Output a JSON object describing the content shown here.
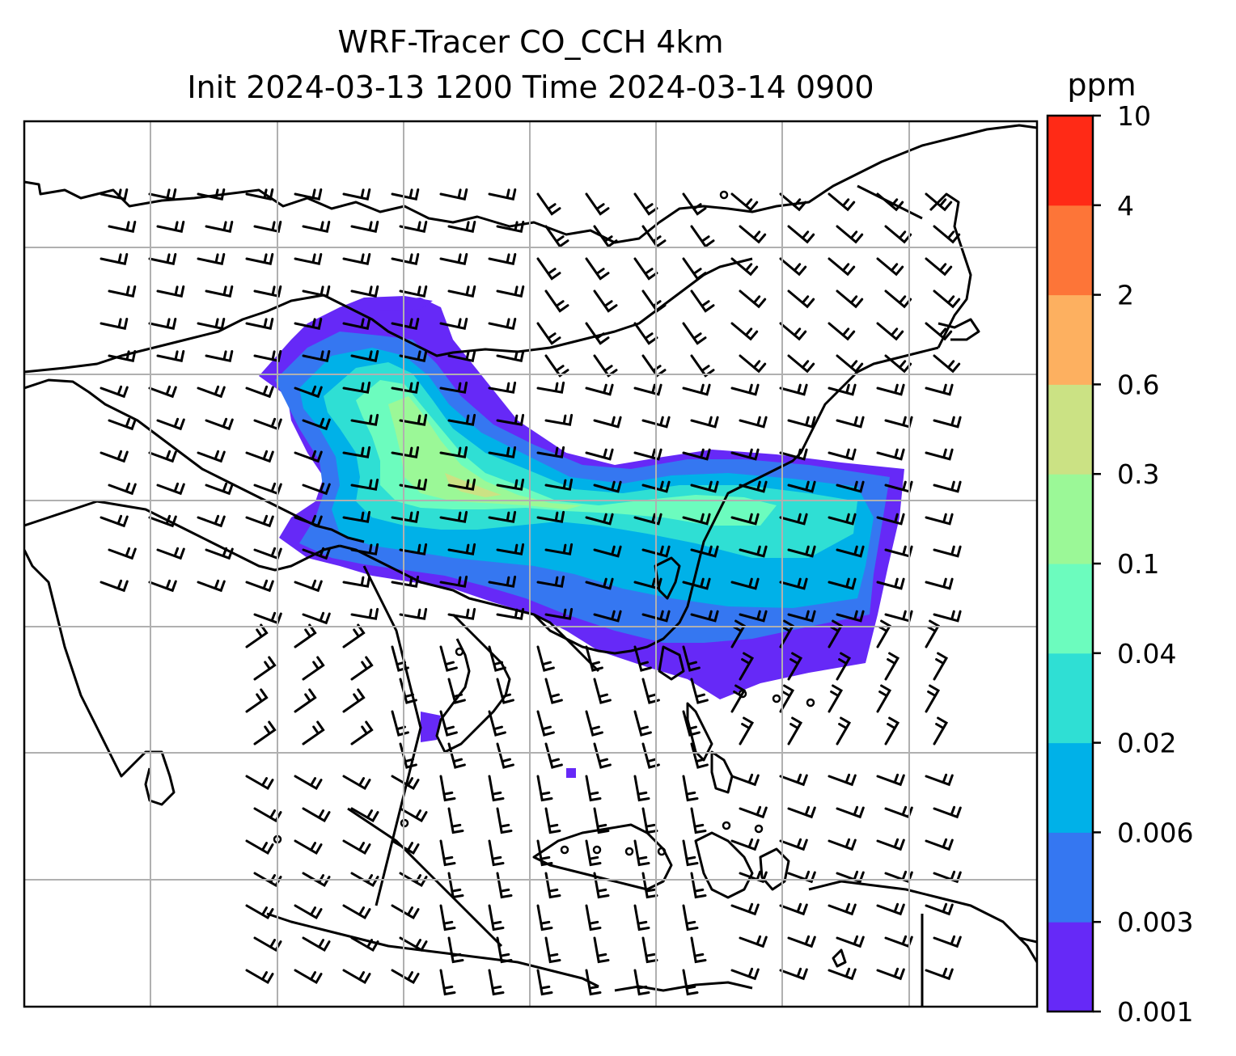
{
  "title": {
    "line1": "WRF-Tracer CO_CCH 4km",
    "line2": "Init 2024-03-13 1200 Time 2024-03-14 0900"
  },
  "colorbar": {
    "unit": "ppm",
    "levels": [
      "0.001",
      "0.003",
      "0.006",
      "0.02",
      "0.04",
      "0.1",
      "0.3",
      "0.6",
      "2",
      "4",
      "10"
    ],
    "colors": [
      "#6629f7",
      "#3577f1",
      "#00b1e8",
      "#2fdfd4",
      "#6cfcbe",
      "#9bf897",
      "#cbe284",
      "#fdb060",
      "#fd7538",
      "#ff2a16"
    ]
  },
  "map": {
    "frame_color": "#000000",
    "grid_color": "#b0b0b0",
    "coastline_color": "#000000",
    "wind_barb_color": "#000000"
  }
}
